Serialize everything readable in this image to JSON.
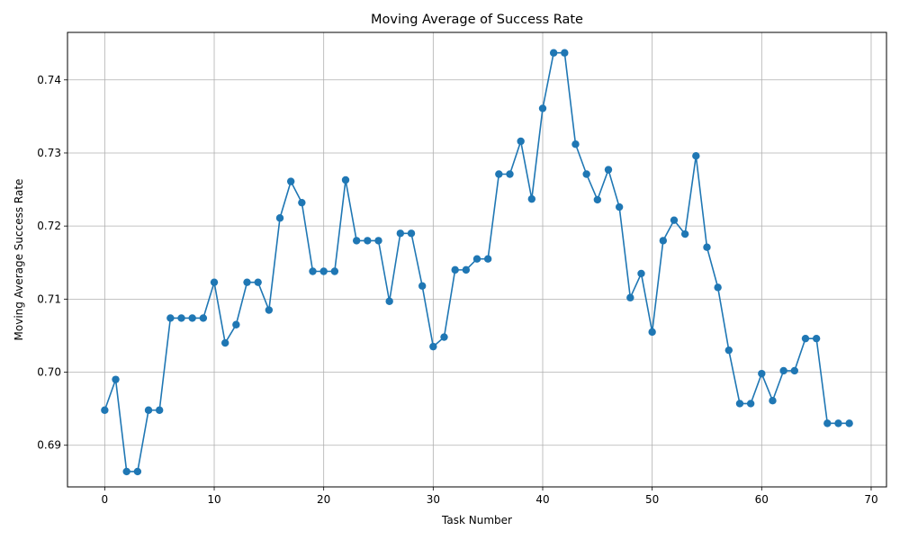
{
  "chart_data": {
    "type": "line",
    "title": "Moving Average of Success Rate",
    "xlabel": "Task Number",
    "ylabel": "Moving Average Success Rate",
    "xlim": [
      -3.4,
      71.4
    ],
    "ylim": [
      0.6843,
      0.7465
    ],
    "xticks": [
      0,
      10,
      20,
      30,
      40,
      50,
      60,
      70
    ],
    "xtick_labels": [
      "0",
      "10",
      "20",
      "30",
      "40",
      "50",
      "60",
      "70"
    ],
    "yticks": [
      0.69,
      0.7,
      0.71,
      0.72,
      0.73,
      0.74
    ],
    "ytick_labels": [
      "0.69",
      "0.70",
      "0.71",
      "0.72",
      "0.73",
      "0.74"
    ],
    "grid": true,
    "marker": "circle",
    "color": "#1f77b4",
    "series": [
      {
        "x": [
          0,
          1,
          2,
          3,
          4,
          5,
          6,
          7,
          8,
          9,
          10,
          11,
          12,
          13,
          14,
          15,
          16,
          17,
          18,
          19,
          20,
          21,
          22,
          23,
          24,
          25,
          26,
          27,
          28,
          29,
          30,
          31,
          32,
          33,
          34,
          35,
          36,
          37,
          38,
          39,
          40,
          41,
          42,
          43,
          44,
          45,
          46,
          47,
          48,
          49,
          50,
          51,
          52,
          53,
          54,
          55,
          56,
          57,
          58,
          59,
          60,
          61,
          62,
          63,
          64,
          65,
          66,
          67,
          68
        ],
        "y": [
          0.6948,
          0.699,
          0.6864,
          0.6864,
          0.6948,
          0.6948,
          0.7074,
          0.7074,
          0.7074,
          0.7074,
          0.7123,
          0.704,
          0.7065,
          0.7123,
          0.7123,
          0.7085,
          0.7211,
          0.7261,
          0.7232,
          0.7138,
          0.7138,
          0.7138,
          0.7263,
          0.718,
          0.718,
          0.718,
          0.7097,
          0.719,
          0.719,
          0.7118,
          0.7035,
          0.7048,
          0.714,
          0.714,
          0.7155,
          0.7155,
          0.7271,
          0.7271,
          0.7316,
          0.7237,
          0.7361,
          0.7437,
          0.7437,
          0.7312,
          0.7271,
          0.7236,
          0.7277,
          0.7226,
          0.7102,
          0.7135,
          0.7055,
          0.718,
          0.7208,
          0.7189,
          0.7296,
          0.7171,
          0.7116,
          0.703,
          0.6957,
          0.6957,
          0.6998,
          0.6961,
          0.7002,
          0.7002,
          0.7046,
          0.7046,
          0.693,
          0.693,
          0.693
        ]
      }
    ]
  }
}
